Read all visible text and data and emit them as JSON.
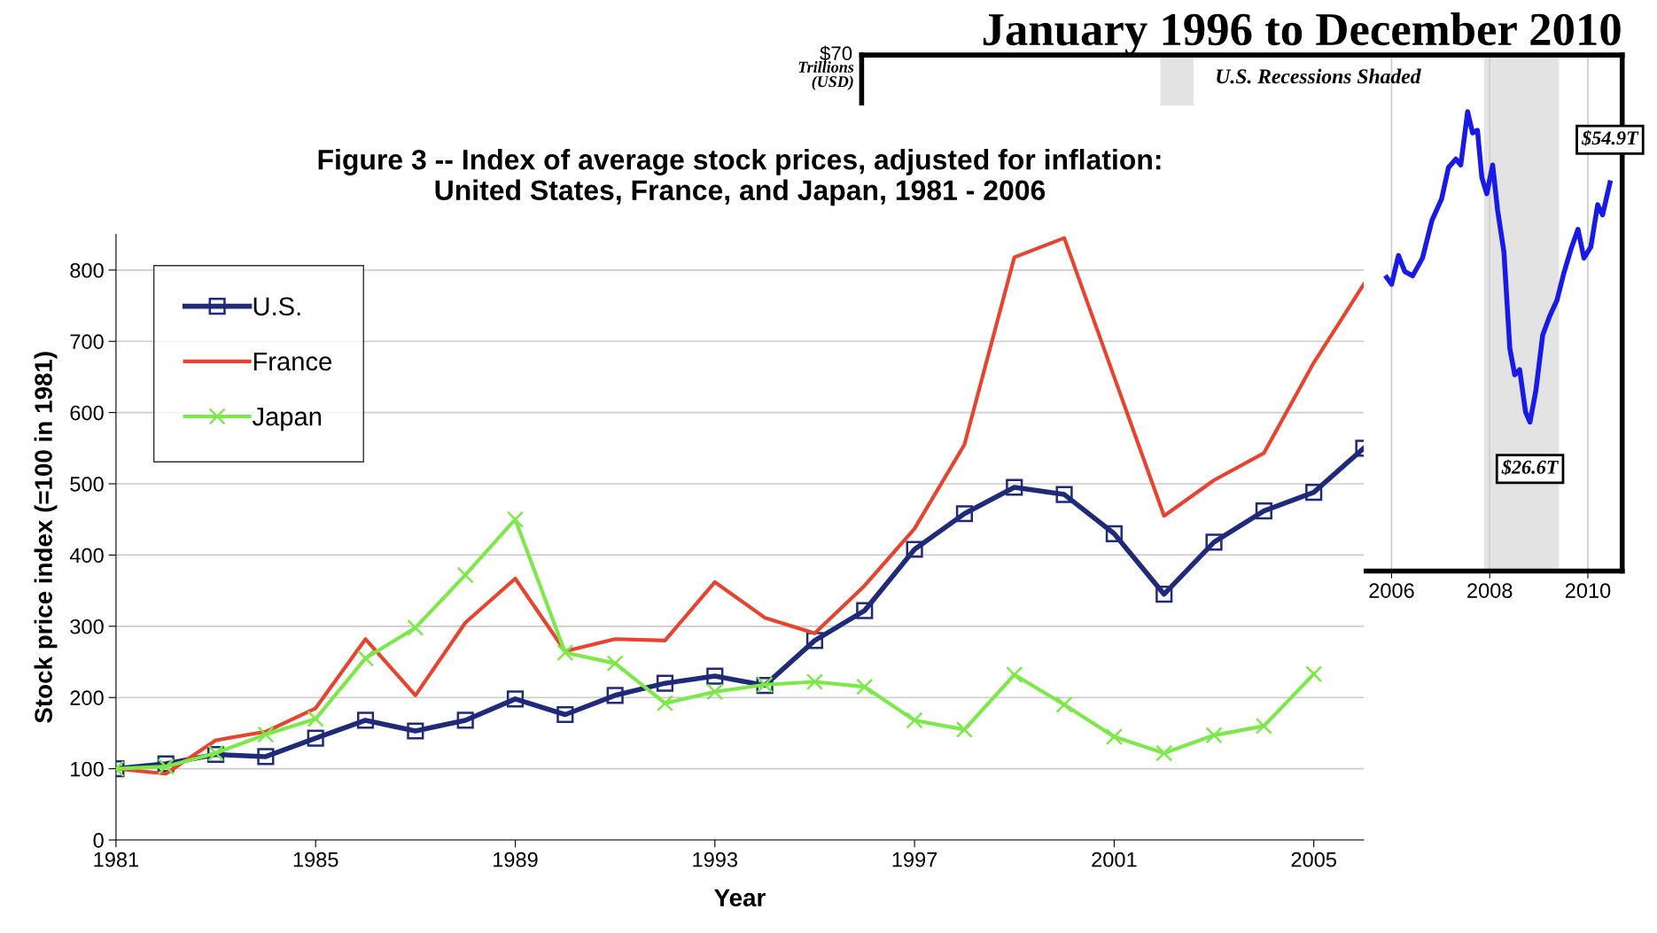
{
  "chart_data": [
    {
      "type": "line",
      "title": "Figure 3 -- Index of average stock prices, adjusted for inflation:\nUnited States, France, and Japan, 1981 - 2006",
      "xlabel": "Year",
      "ylabel": "Stock price index (=100 in 1981)",
      "x": [
        1981,
        1982,
        1983,
        1984,
        1985,
        1986,
        1987,
        1988,
        1989,
        1990,
        1991,
        1992,
        1993,
        1994,
        1995,
        1996,
        1997,
        1998,
        1999,
        2000,
        2001,
        2002,
        2003,
        2004,
        2005,
        2006
      ],
      "series": [
        {
          "name": "U.S.",
          "color": "#1f2a7a",
          "marker": "square",
          "values": [
            100,
            107,
            120,
            117,
            143,
            168,
            153,
            168,
            198,
            176,
            203,
            220,
            230,
            217,
            280,
            322,
            408,
            458,
            495,
            485,
            430,
            345,
            418,
            462,
            488,
            550
          ]
        },
        {
          "name": "France",
          "color": "#e8432f",
          "marker": "none",
          "values": [
            100,
            93,
            140,
            152,
            185,
            282,
            203,
            305,
            367,
            265,
            282,
            280,
            362,
            312,
            290,
            357,
            437,
            555,
            818,
            845,
            650,
            455,
            505,
            543,
            670,
            780
          ]
        },
        {
          "name": "Japan",
          "color": "#7de84a",
          "marker": "cross",
          "values": [
            100,
            103,
            122,
            148,
            170,
            255,
            298,
            372,
            450,
            263,
            248,
            192,
            208,
            218,
            222,
            215,
            168,
            155,
            232,
            190,
            145,
            122,
            147,
            160,
            233,
            null
          ]
        }
      ],
      "xlim": [
        1981,
        2006
      ],
      "xticks": [
        1981,
        1985,
        1989,
        1993,
        1997,
        2001,
        2005
      ],
      "ylim": [
        0,
        850
      ],
      "yticks": [
        0,
        100,
        200,
        300,
        400,
        500,
        600,
        700,
        800
      ],
      "grid": "y",
      "legend": "top left",
      "line_style": "solid"
    },
    {
      "type": "line",
      "title": "January 1996 to December 2010",
      "ylabel": "Trillions (USD)",
      "annotations": [
        "U.S. Recessions Shaded",
        "$70"
      ],
      "bands": [
        {
          "axis": "x",
          "from": 2001.3,
          "to": 2001.95,
          "label": null,
          "color": "#e3e3e3"
        },
        {
          "axis": "x",
          "from": 2007.9,
          "to": 2009.4,
          "label": null,
          "color": "#e3e3e3"
        }
      ],
      "series": [
        {
          "color": "#1a1ae6",
          "x": [
            2005.9,
            2006.0,
            2006.14,
            2006.27,
            2006.43,
            2006.63,
            2006.82,
            2007.02,
            2007.16,
            2007.31,
            2007.41,
            2007.55,
            2007.65,
            2007.75,
            2007.84,
            2007.94,
            2008.06,
            2008.16,
            2008.29,
            2008.41,
            2008.51,
            2008.61,
            2008.73,
            2008.82,
            2008.94,
            2009.08,
            2009.22,
            2009.37,
            2009.51,
            2009.67,
            2009.8,
            2009.92,
            2010.06,
            2010.2,
            2010.3,
            2010.45
          ],
          "values": [
            43.7,
            42.9,
            46.3,
            44.4,
            43.9,
            46.0,
            50.4,
            53.0,
            56.7,
            57.7,
            57.0,
            63.3,
            60.8,
            61.1,
            55.5,
            53.6,
            57.0,
            51.7,
            46.7,
            35.3,
            32.2,
            32.8,
            27.8,
            26.6,
            30.3,
            36.9,
            39.1,
            41.0,
            44.2,
            47.3,
            49.4,
            46.0,
            47.3,
            52.3,
            51.1,
            54.9
          ],
          "value_labels": [
            null,
            null,
            null,
            null,
            null,
            null,
            null,
            null,
            null,
            null,
            null,
            null,
            null,
            null,
            null,
            null,
            null,
            null,
            null,
            null,
            null,
            null,
            null,
            "$26.6T",
            null,
            null,
            null,
            null,
            null,
            null,
            null,
            null,
            null,
            null,
            null,
            "$54.9T"
          ]
        }
      ],
      "xlim": [
        1995.2,
        2010.7
      ],
      "xticks": [
        2006,
        2008,
        2010
      ],
      "ylim": [
        9,
        70
      ],
      "grid": "x",
      "legend": false,
      "line_style": "solid"
    }
  ]
}
